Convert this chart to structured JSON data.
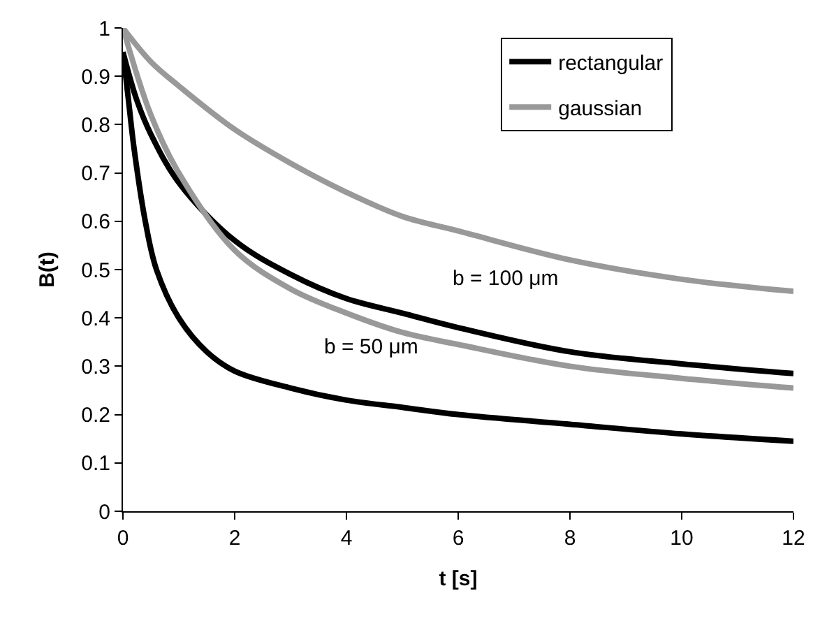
{
  "chart_data": {
    "type": "line",
    "xlabel": "t [s]",
    "ylabel": "B(t)",
    "xlim": [
      0,
      12
    ],
    "ylim": [
      0,
      1
    ],
    "xticks": [
      0,
      2,
      4,
      6,
      8,
      10,
      12
    ],
    "yticks": [
      0,
      0.1,
      0.2,
      0.3,
      0.4,
      0.5,
      0.6,
      0.7,
      0.8,
      0.9,
      1
    ],
    "legend": "top right",
    "marker": "none",
    "line_style": "solid",
    "series": [
      {
        "name": "rectangular",
        "color": "#000000",
        "x": [
          0,
          0.25,
          0.5,
          1,
          2,
          3,
          4,
          5,
          6,
          8,
          10,
          12
        ],
        "values": [
          0.95,
          0.85,
          0.78,
          0.68,
          0.56,
          0.49,
          0.44,
          0.41,
          0.38,
          0.33,
          0.305,
          0.285
        ]
      },
      {
        "name": "gaussian",
        "color": "#999999",
        "x": [
          0,
          0.5,
          1,
          2,
          3,
          4,
          5,
          6,
          8,
          10,
          12
        ],
        "values": [
          1.0,
          0.93,
          0.88,
          0.79,
          0.72,
          0.66,
          0.61,
          0.58,
          0.52,
          0.48,
          0.455
        ]
      },
      {
        "color": "#000000",
        "x": [
          0,
          0.1,
          0.2,
          0.4,
          0.6,
          1,
          1.5,
          2,
          3,
          4,
          5,
          6,
          8,
          10,
          12
        ],
        "values": [
          0.95,
          0.85,
          0.75,
          0.6,
          0.5,
          0.4,
          0.33,
          0.29,
          0.255,
          0.23,
          0.215,
          0.2,
          0.18,
          0.16,
          0.145
        ]
      },
      {
        "color": "#999999",
        "x": [
          0,
          0.5,
          1,
          2,
          3,
          4,
          5,
          6,
          8,
          10,
          12
        ],
        "values": [
          1.0,
          0.82,
          0.7,
          0.54,
          0.46,
          0.41,
          0.37,
          0.345,
          0.3,
          0.275,
          0.255
        ]
      }
    ],
    "annotations": [
      "b = 100 μm",
      "b = 50 μm"
    ]
  }
}
